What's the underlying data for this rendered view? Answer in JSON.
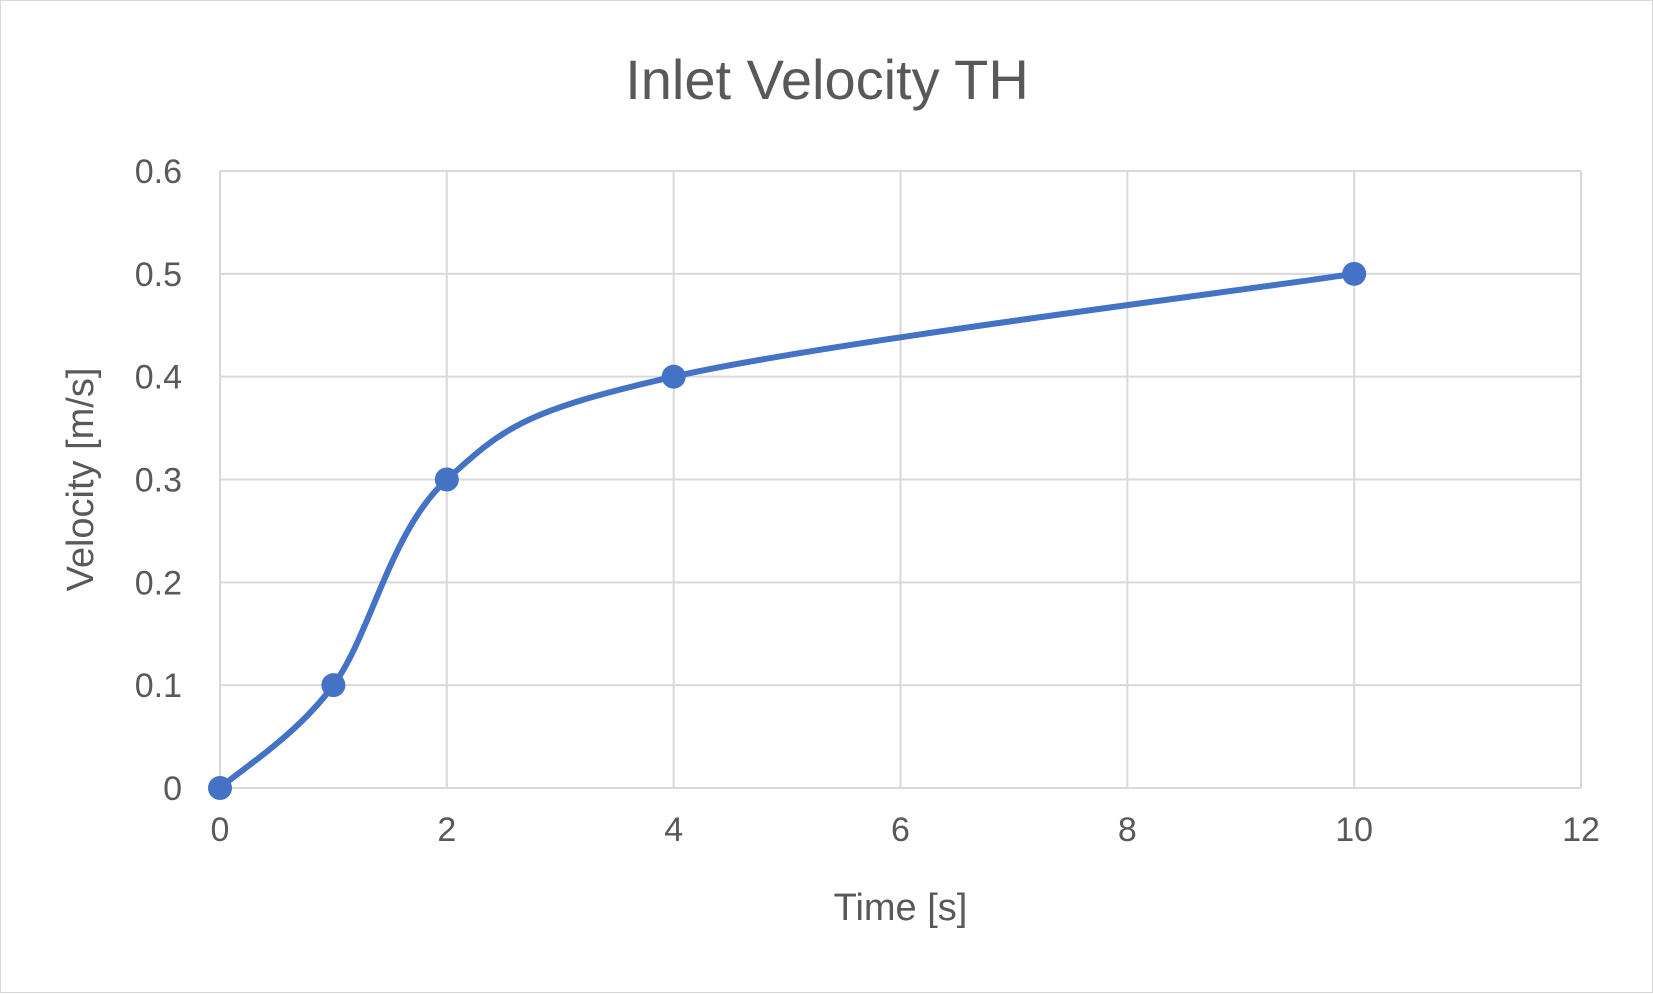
{
  "chart_data": {
    "type": "scatter",
    "style": "smoothed-line-with-markers",
    "title": "Inlet Velocity TH",
    "xlabel": "Time [s]",
    "ylabel": "Velocity [m/s]",
    "xlim": [
      0,
      12
    ],
    "ylim": [
      0,
      0.6
    ],
    "xticks": [
      0,
      2,
      4,
      6,
      8,
      10,
      12
    ],
    "yticks": [
      0,
      0.1,
      0.2,
      0.3,
      0.4,
      0.5,
      0.6
    ],
    "xtick_labels": [
      "0",
      "2",
      "4",
      "6",
      "8",
      "10",
      "12"
    ],
    "ytick_labels": [
      "0",
      "0.1",
      "0.2",
      "0.3",
      "0.4",
      "0.5",
      "0.6"
    ],
    "grid": true,
    "legend": "none",
    "series": [
      {
        "name": "Inlet Velocity",
        "color": "#4472C4",
        "points": [
          {
            "x": 0,
            "y": 0
          },
          {
            "x": 1,
            "y": 0.1
          },
          {
            "x": 2,
            "y": 0.3
          },
          {
            "x": 4,
            "y": 0.4
          },
          {
            "x": 10,
            "y": 0.5
          }
        ]
      }
    ]
  }
}
